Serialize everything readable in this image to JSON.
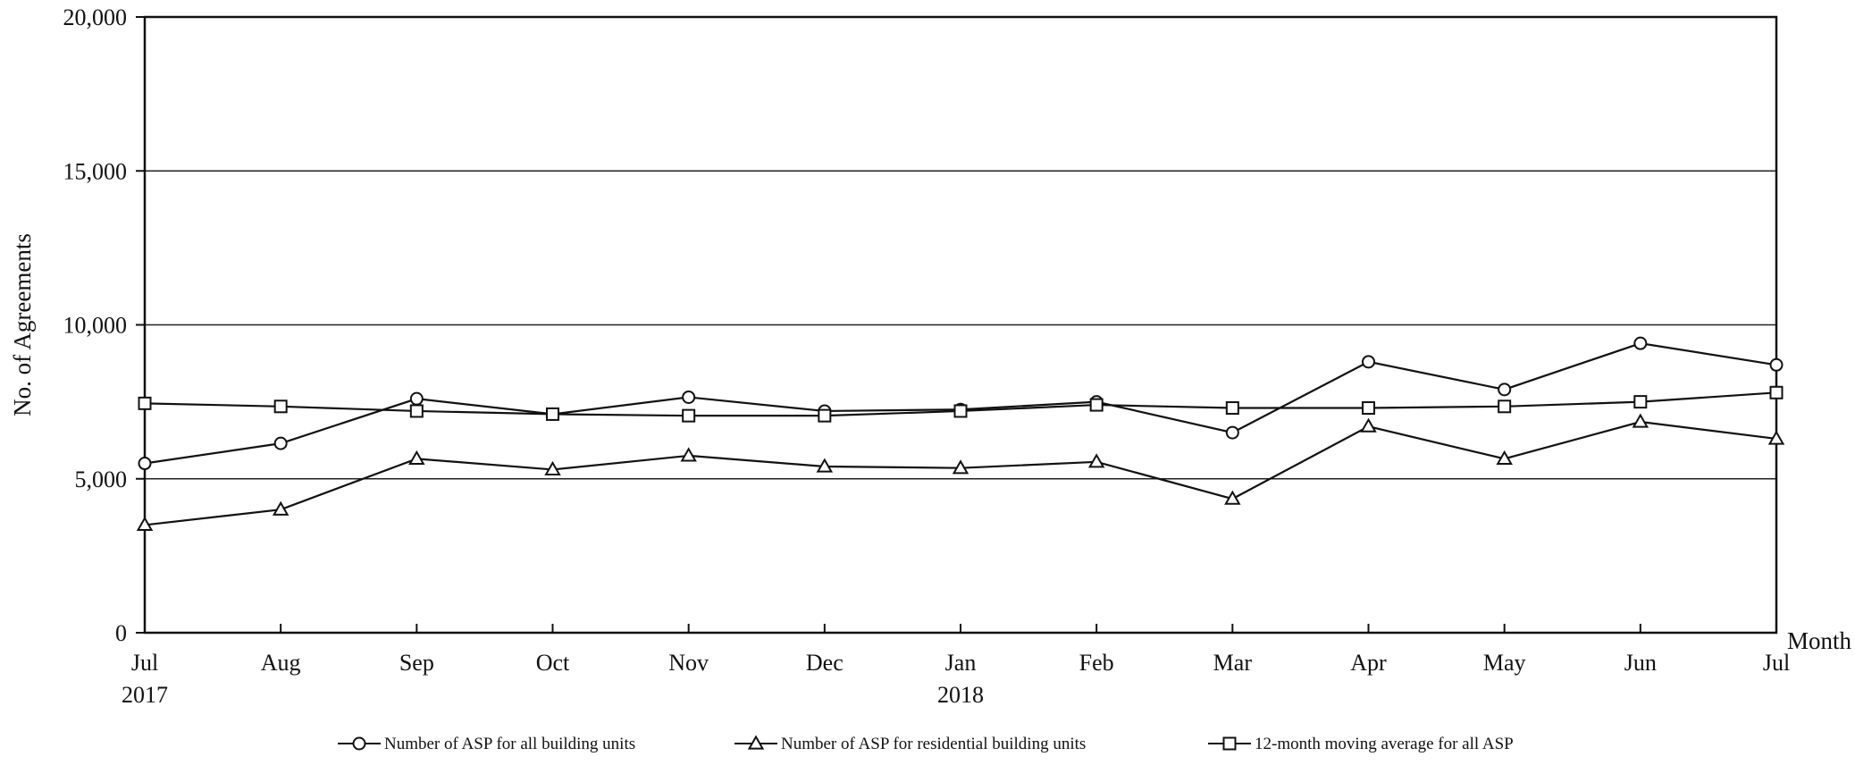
{
  "chart_data": {
    "type": "line",
    "ylabel": "No. of Agreements",
    "xlabel": "Month",
    "ylim": [
      0,
      20000
    ],
    "yticks": [
      0,
      5000,
      10000,
      15000,
      20000
    ],
    "ytick_labels": [
      "0",
      "5,000",
      "10,000",
      "15,000",
      "20,000"
    ],
    "categories": [
      "Jul 2017",
      "Aug",
      "Sep",
      "Oct",
      "Nov",
      "Dec",
      "Jan 2018",
      "Feb",
      "Mar",
      "Apr",
      "May",
      "Jun",
      "Jul"
    ],
    "tick_labels": [
      {
        "month": "Jul",
        "year": "2017"
      },
      {
        "month": "Aug",
        "year": ""
      },
      {
        "month": "Sep",
        "year": ""
      },
      {
        "month": "Oct",
        "year": ""
      },
      {
        "month": "Nov",
        "year": ""
      },
      {
        "month": "Dec",
        "year": ""
      },
      {
        "month": "Jan",
        "year": "2018"
      },
      {
        "month": "Feb",
        "year": ""
      },
      {
        "month": "Mar",
        "year": ""
      },
      {
        "month": "Apr",
        "year": ""
      },
      {
        "month": "May",
        "year": ""
      },
      {
        "month": "Jun",
        "year": ""
      },
      {
        "month": "Jul",
        "year": ""
      }
    ],
    "grid": "horizontal",
    "legend_position": "bottom",
    "series": [
      {
        "name": "Number of ASP for all building units",
        "marker": "circle",
        "values": [
          5500,
          6150,
          7600,
          7100,
          7650,
          7200,
          7250,
          7500,
          6500,
          8800,
          7900,
          9400,
          8700
        ]
      },
      {
        "name": "Number of ASP for residential building units",
        "marker": "triangle",
        "values": [
          3500,
          4000,
          5650,
          5300,
          5750,
          5400,
          5350,
          5550,
          4350,
          6700,
          5650,
          6850,
          6300
        ]
      },
      {
        "name": "12-month moving average for all ASP",
        "marker": "square",
        "values": [
          7450,
          7350,
          7200,
          7100,
          7050,
          7050,
          7200,
          7400,
          7300,
          7300,
          7350,
          7500,
          7800
        ]
      }
    ]
  }
}
